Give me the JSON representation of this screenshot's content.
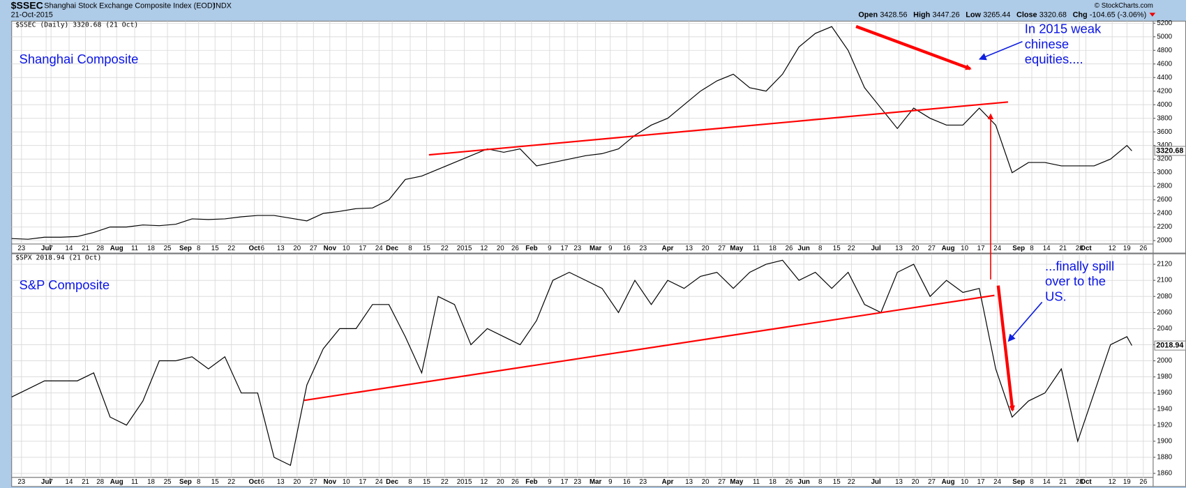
{
  "header": {
    "symbol": "$SSEC",
    "name": "Shanghai Stock Exchange Composite Index (EOD)",
    "exchange": "INDX",
    "date": "21-Oct-2015",
    "quote": [
      {
        "label": "Open",
        "value": "3428.56"
      },
      {
        "label": "High",
        "value": "3447.26"
      },
      {
        "label": "Low",
        "value": "3265.44"
      },
      {
        "label": "Close",
        "value": "3320.68"
      },
      {
        "label": "Chg",
        "value": "-104.65 (-3.06%)"
      }
    ],
    "credit": "© StockCharts.com"
  },
  "chart_data": [
    {
      "type": "line",
      "legend": "$SSEC (Daily) 3320.68 (21 Oct)",
      "title": "Shanghai Composite",
      "annotation": [
        "In 2015 weak",
        "chinese",
        "equities...."
      ],
      "x": [
        0,
        1,
        2,
        3,
        4,
        5,
        6,
        7,
        8,
        9,
        10,
        11,
        12,
        13,
        14,
        15,
        16,
        17,
        18,
        19,
        20,
        21,
        22,
        23,
        24,
        25,
        26,
        27,
        28,
        29,
        30,
        31,
        32,
        33,
        34,
        35,
        36,
        37,
        38,
        39,
        40,
        41,
        42,
        43,
        44,
        45,
        46,
        47,
        48,
        49,
        50,
        51,
        52,
        53,
        54,
        55,
        56,
        57,
        58,
        59,
        60,
        61,
        62,
        63,
        64,
        65,
        66,
        67,
        68,
        68.3
      ],
      "series": [
        {
          "name": "$SSEC",
          "color": "#000000",
          "values": [
            2030,
            2020,
            2050,
            2050,
            2060,
            2120,
            2200,
            2200,
            2230,
            2220,
            2240,
            2320,
            2310,
            2320,
            2350,
            2370,
            2370,
            2330,
            2290,
            2400,
            2430,
            2470,
            2480,
            2600,
            2900,
            2950,
            3050,
            3150,
            3250,
            3350,
            3300,
            3350,
            3100,
            3150,
            3200,
            3250,
            3280,
            3350,
            3550,
            3700,
            3800,
            4000,
            4200,
            4350,
            4450,
            4250,
            4200,
            4450,
            4850,
            5050,
            5150,
            4800,
            4250,
            3950,
            3650,
            3950,
            3800,
            3700,
            3700,
            3950,
            3700,
            3000,
            3150,
            3150,
            3100,
            3100,
            3100,
            3200,
            3400,
            3320.68
          ]
        }
      ],
      "ylim": [
        1950,
        5230
      ],
      "yticks": [
        2000,
        2200,
        2400,
        2600,
        2800,
        3000,
        3200,
        3400,
        3600,
        3800,
        4000,
        4200,
        4400,
        4600,
        4800,
        5000,
        5200
      ],
      "xlim": [
        0,
        69.6
      ],
      "grid": true,
      "xticks": [
        {
          "value": 0.6,
          "label": "23"
        },
        {
          "value": 2.1,
          "label": "Jul"
        },
        {
          "value": 2.4,
          "label": "7"
        },
        {
          "value": 3.5,
          "label": "14"
        },
        {
          "value": 4.5,
          "label": "21"
        },
        {
          "value": 5.4,
          "label": "28"
        },
        {
          "value": 6.4,
          "label": "Aug"
        },
        {
          "value": 7.5,
          "label": "11"
        },
        {
          "value": 8.5,
          "label": "18"
        },
        {
          "value": 9.5,
          "label": "25"
        },
        {
          "value": 10.6,
          "label": "Sep"
        },
        {
          "value": 11.4,
          "label": "8"
        },
        {
          "value": 12.4,
          "label": "15"
        },
        {
          "value": 13.4,
          "label": "22"
        },
        {
          "value": 14.8,
          "label": "Oct"
        },
        {
          "value": 15.3,
          "label": "6"
        },
        {
          "value": 16.4,
          "label": "13"
        },
        {
          "value": 17.4,
          "label": "20"
        },
        {
          "value": 18.4,
          "label": "27"
        },
        {
          "value": 19.4,
          "label": "Nov"
        },
        {
          "value": 20.4,
          "label": "10"
        },
        {
          "value": 21.4,
          "label": "17"
        },
        {
          "value": 22.4,
          "label": "24"
        },
        {
          "value": 23.2,
          "label": "Dec"
        },
        {
          "value": 24.3,
          "label": "8"
        },
        {
          "value": 25.3,
          "label": "15"
        },
        {
          "value": 26.4,
          "label": "22"
        },
        {
          "value": 27.6,
          "label": "2015"
        },
        {
          "value": 28.8,
          "label": "12"
        },
        {
          "value": 29.8,
          "label": "20"
        },
        {
          "value": 30.7,
          "label": "26"
        },
        {
          "value": 31.7,
          "label": "Feb"
        },
        {
          "value": 32.8,
          "label": "9"
        },
        {
          "value": 33.7,
          "label": "17"
        },
        {
          "value": 34.5,
          "label": "23"
        },
        {
          "value": 35.6,
          "label": "Mar"
        },
        {
          "value": 36.5,
          "label": "9"
        },
        {
          "value": 37.5,
          "label": "16"
        },
        {
          "value": 38.5,
          "label": "23"
        },
        {
          "value": 40.0,
          "label": "Apr"
        },
        {
          "value": 41.3,
          "label": "13"
        },
        {
          "value": 42.3,
          "label": "20"
        },
        {
          "value": 43.3,
          "label": "27"
        },
        {
          "value": 44.2,
          "label": "May"
        },
        {
          "value": 45.4,
          "label": "11"
        },
        {
          "value": 46.4,
          "label": "18"
        },
        {
          "value": 47.4,
          "label": "26"
        },
        {
          "value": 48.3,
          "label": "Jun"
        },
        {
          "value": 49.3,
          "label": "8"
        },
        {
          "value": 50.3,
          "label": "15"
        },
        {
          "value": 51.2,
          "label": "22"
        },
        {
          "value": 52.7,
          "label": "Jul"
        },
        {
          "value": 54.1,
          "label": "13"
        },
        {
          "value": 55.1,
          "label": "20"
        },
        {
          "value": 56.1,
          "label": "27"
        },
        {
          "value": 57.1,
          "label": "Aug"
        },
        {
          "value": 58.1,
          "label": "10"
        },
        {
          "value": 59.1,
          "label": "17"
        },
        {
          "value": 60.1,
          "label": "24"
        },
        {
          "value": 61.4,
          "label": "Sep"
        },
        {
          "value": 62.2,
          "label": "8"
        },
        {
          "value": 63.1,
          "label": "14"
        },
        {
          "value": 64.1,
          "label": "21"
        },
        {
          "value": 65.1,
          "label": "28"
        },
        {
          "value": 65.5,
          "label": "Oct"
        },
        {
          "value": 67.1,
          "label": "12"
        },
        {
          "value": 68.0,
          "label": "19"
        },
        {
          "value": 69.0,
          "label": "26"
        }
      ]
    },
    {
      "type": "line",
      "legend": "$SPX 2018.94 (21 Oct)",
      "title": "S&P Composite",
      "annotation": [
        "...finally spill",
        "over to the",
        "US."
      ],
      "x": [
        0,
        1,
        2,
        3,
        4,
        5,
        6,
        7,
        8,
        9,
        10,
        11,
        12,
        13,
        14,
        15,
        16,
        17,
        18,
        19,
        20,
        21,
        22,
        23,
        24,
        25,
        26,
        27,
        28,
        29,
        30,
        31,
        32,
        33,
        34,
        35,
        36,
        37,
        38,
        39,
        40,
        41,
        42,
        43,
        44,
        45,
        46,
        47,
        48,
        49,
        50,
        51,
        52,
        53,
        54,
        55,
        56,
        57,
        58,
        59,
        60,
        61,
        62,
        63,
        64,
        65,
        66,
        67,
        68,
        68.3
      ],
      "series": [
        {
          "name": "$SPX",
          "color": "#000000",
          "values": [
            1955,
            1965,
            1975,
            1975,
            1975,
            1985,
            1930,
            1920,
            1950,
            2000,
            2000,
            2005,
            1990,
            2005,
            1960,
            1960,
            1880,
            1870,
            1970,
            2015,
            2040,
            2040,
            2070,
            2070,
            2030,
            1985,
            2080,
            2070,
            2020,
            2040,
            2030,
            2020,
            2050,
            2100,
            2110,
            2100,
            2090,
            2060,
            2100,
            2070,
            2100,
            2090,
            2105,
            2110,
            2090,
            2110,
            2120,
            2125,
            2100,
            2110,
            2090,
            2110,
            2070,
            2060,
            2110,
            2120,
            2080,
            2100,
            2085,
            2090,
            1990,
            1930,
            1950,
            1960,
            1990,
            1900,
            1960,
            2020,
            2030,
            2018.94
          ]
        }
      ],
      "ylim": [
        1855,
        2133
      ],
      "yticks": [
        1860,
        1880,
        1900,
        1920,
        1940,
        1960,
        1980,
        2000,
        2020,
        2040,
        2060,
        2080,
        2100,
        2120
      ],
      "xlim": [
        0,
        69.6
      ],
      "grid": true,
      "xticks": [
        {
          "value": 0.6,
          "label": "23"
        },
        {
          "value": 2.1,
          "label": "Jul"
        },
        {
          "value": 2.4,
          "label": "7"
        },
        {
          "value": 3.5,
          "label": "14"
        },
        {
          "value": 4.5,
          "label": "21"
        },
        {
          "value": 5.4,
          "label": "28"
        },
        {
          "value": 6.4,
          "label": "Aug"
        },
        {
          "value": 7.5,
          "label": "11"
        },
        {
          "value": 8.5,
          "label": "18"
        },
        {
          "value": 9.5,
          "label": "25"
        },
        {
          "value": 10.6,
          "label": "Sep"
        },
        {
          "value": 11.4,
          "label": "8"
        },
        {
          "value": 12.4,
          "label": "15"
        },
        {
          "value": 13.4,
          "label": "22"
        },
        {
          "value": 14.8,
          "label": "Oct"
        },
        {
          "value": 15.3,
          "label": "6"
        },
        {
          "value": 16.4,
          "label": "13"
        },
        {
          "value": 17.4,
          "label": "20"
        },
        {
          "value": 18.4,
          "label": "27"
        },
        {
          "value": 19.4,
          "label": "Nov"
        },
        {
          "value": 20.4,
          "label": "10"
        },
        {
          "value": 21.4,
          "label": "17"
        },
        {
          "value": 22.4,
          "label": "24"
        },
        {
          "value": 23.2,
          "label": "Dec"
        },
        {
          "value": 24.3,
          "label": "8"
        },
        {
          "value": 25.3,
          "label": "15"
        },
        {
          "value": 26.4,
          "label": "22"
        },
        {
          "value": 27.6,
          "label": "2015"
        },
        {
          "value": 28.8,
          "label": "12"
        },
        {
          "value": 29.8,
          "label": "20"
        },
        {
          "value": 30.7,
          "label": "26"
        },
        {
          "value": 31.7,
          "label": "Feb"
        },
        {
          "value": 32.8,
          "label": "9"
        },
        {
          "value": 33.7,
          "label": "17"
        },
        {
          "value": 34.5,
          "label": "23"
        },
        {
          "value": 35.6,
          "label": "Mar"
        },
        {
          "value": 36.5,
          "label": "9"
        },
        {
          "value": 37.5,
          "label": "16"
        },
        {
          "value": 38.5,
          "label": "23"
        },
        {
          "value": 40.0,
          "label": "Apr"
        },
        {
          "value": 41.3,
          "label": "13"
        },
        {
          "value": 42.3,
          "label": "20"
        },
        {
          "value": 43.3,
          "label": "27"
        },
        {
          "value": 44.2,
          "label": "May"
        },
        {
          "value": 45.4,
          "label": "11"
        },
        {
          "value": 46.4,
          "label": "18"
        },
        {
          "value": 47.4,
          "label": "26"
        },
        {
          "value": 48.3,
          "label": "Jun"
        },
        {
          "value": 49.3,
          "label": "8"
        },
        {
          "value": 50.3,
          "label": "15"
        },
        {
          "value": 51.2,
          "label": "22"
        },
        {
          "value": 52.7,
          "label": "Jul"
        },
        {
          "value": 54.1,
          "label": "13"
        },
        {
          "value": 55.1,
          "label": "20"
        },
        {
          "value": 56.1,
          "label": "27"
        },
        {
          "value": 57.1,
          "label": "Aug"
        },
        {
          "value": 58.1,
          "label": "10"
        },
        {
          "value": 59.1,
          "label": "17"
        },
        {
          "value": 60.1,
          "label": "24"
        },
        {
          "value": 61.4,
          "label": "Sep"
        },
        {
          "value": 62.2,
          "label": "8"
        },
        {
          "value": 63.1,
          "label": "14"
        },
        {
          "value": 64.1,
          "label": "21"
        },
        {
          "value": 65.1,
          "label": "28"
        },
        {
          "value": 65.5,
          "label": "Oct"
        },
        {
          "value": 67.1,
          "label": "12"
        },
        {
          "value": 68.0,
          "label": "19"
        },
        {
          "value": 69.0,
          "label": "26"
        }
      ]
    }
  ]
}
